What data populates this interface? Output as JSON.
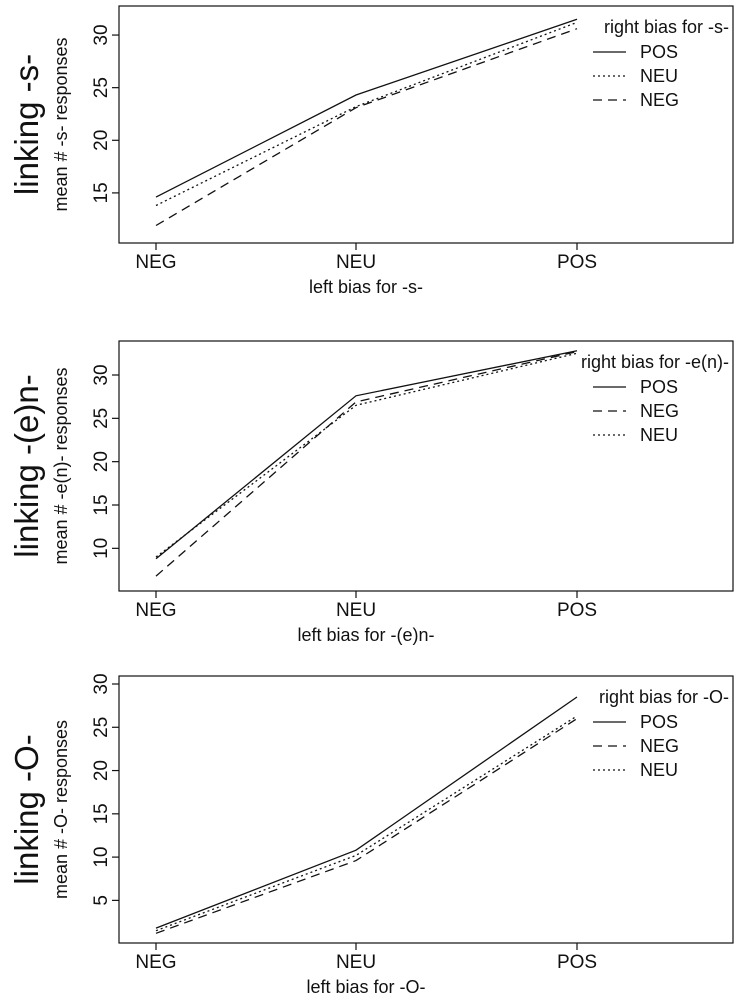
{
  "chart_data": [
    {
      "type": "line",
      "title": "linking -s-",
      "xlabel": "left bias for -s-",
      "ylabel": "mean # -s- responses",
      "categories": [
        "NEG",
        "NEU",
        "POS"
      ],
      "ylim": [
        11,
        32
      ],
      "yticks": [
        15,
        20,
        25,
        30
      ],
      "grid": false,
      "legend_title": "right bias for -s-",
      "legend_position": "top-right",
      "series": [
        {
          "name": "POS",
          "dash": "solid",
          "values": [
            14.6,
            24.3,
            31.5
          ]
        },
        {
          "name": "NEU",
          "dash": "dotted",
          "values": [
            13.8,
            23.2,
            31.2
          ]
        },
        {
          "name": "NEG",
          "dash": "dashed",
          "values": [
            11.9,
            23.1,
            30.6
          ]
        }
      ]
    },
    {
      "type": "line",
      "title": "linking -(e)n-",
      "xlabel": "left bias for -(e)n-",
      "ylabel": "mean # -e(n)- responses",
      "categories": [
        "NEG",
        "NEU",
        "POS"
      ],
      "ylim": [
        6,
        33
      ],
      "yticks": [
        10,
        15,
        20,
        25,
        30
      ],
      "grid": false,
      "legend_title": "right bias for -e(n)-",
      "legend_position": "top-right",
      "series": [
        {
          "name": "POS",
          "dash": "solid",
          "values": [
            8.8,
            27.6,
            32.8
          ]
        },
        {
          "name": "NEG",
          "dash": "dashed",
          "values": [
            6.8,
            26.9,
            32.7
          ]
        },
        {
          "name": "NEU",
          "dash": "dotted",
          "values": [
            9.0,
            26.5,
            32.5
          ]
        }
      ]
    },
    {
      "type": "line",
      "title": "linking -O-",
      "xlabel": "left bias for -O-",
      "ylabel": "mean # -O- responses",
      "categories": [
        "NEG",
        "NEU",
        "POS"
      ],
      "ylim": [
        1,
        30
      ],
      "yticks": [
        5,
        10,
        15,
        20,
        25,
        30
      ],
      "grid": false,
      "legend_title": "right bias for -O-",
      "legend_position": "top-right",
      "series": [
        {
          "name": "POS",
          "dash": "solid",
          "values": [
            1.8,
            10.8,
            28.5
          ]
        },
        {
          "name": "NEG",
          "dash": "dashed",
          "values": [
            1.2,
            9.6,
            26.0
          ]
        },
        {
          "name": "NEU",
          "dash": "dotted",
          "values": [
            1.5,
            10.2,
            26.3
          ]
        }
      ]
    }
  ]
}
